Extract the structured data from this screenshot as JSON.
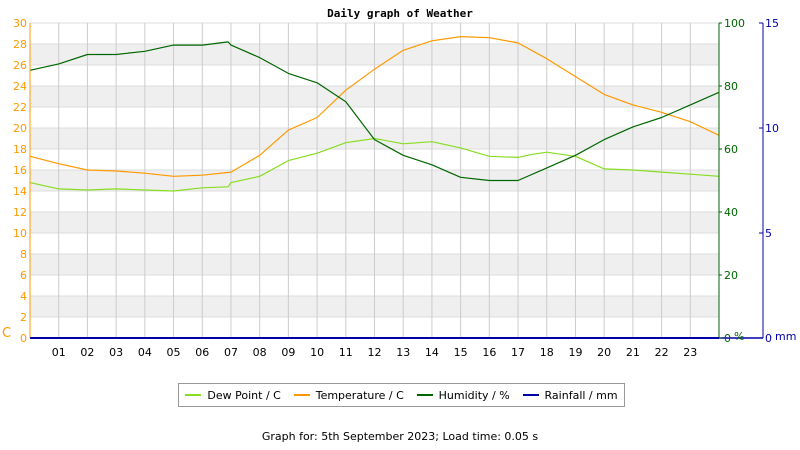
{
  "chart_data": {
    "type": "line",
    "title": "Daily graph of Weather",
    "x_tick_labels": [
      "01",
      "02",
      "03",
      "04",
      "05",
      "06",
      "07",
      "08",
      "09",
      "10",
      "11",
      "12",
      "13",
      "14",
      "15",
      "16",
      "17",
      "18",
      "19",
      "20",
      "21",
      "22",
      "23"
    ],
    "xlim": [
      0,
      24
    ],
    "grid": true,
    "legend_placement": "bottom-center",
    "axes": {
      "left": {
        "unit_label": "C",
        "range": [
          0,
          30
        ],
        "ticks": [
          0,
          2,
          4,
          6,
          8,
          10,
          12,
          14,
          16,
          18,
          20,
          22,
          24,
          26,
          28,
          30
        ],
        "color": "#ff9900"
      },
      "right1": {
        "unit_label": "%",
        "range": [
          0,
          100
        ],
        "ticks": [
          0,
          20,
          40,
          60,
          80,
          100
        ],
        "color": "#006600"
      },
      "right2": {
        "unit_label": "mm",
        "range": [
          0,
          15
        ],
        "ticks": [
          0,
          5,
          10,
          15
        ],
        "color": "#0000aa"
      }
    },
    "series": [
      {
        "name": "Dew Point / C",
        "axis": "left",
        "color": "#88dd22",
        "x": [
          0,
          1,
          2,
          3,
          4,
          5,
          6,
          6.9,
          7,
          8,
          9,
          10,
          11,
          12,
          13,
          14,
          15,
          16,
          17,
          17.5,
          18,
          19,
          20,
          21,
          22,
          23,
          24
        ],
        "values": [
          14.8,
          14.2,
          14.1,
          14.2,
          14.1,
          14.0,
          14.3,
          14.4,
          14.8,
          15.4,
          16.9,
          17.6,
          18.6,
          19.0,
          18.5,
          18.7,
          18.1,
          17.3,
          17.2,
          17.5,
          17.7,
          17.3,
          16.1,
          16.0,
          15.8,
          15.6,
          15.4
        ]
      },
      {
        "name": "Temperature / C",
        "axis": "left",
        "color": "#ff9900",
        "x": [
          0,
          1,
          2,
          3,
          4,
          5,
          6,
          7,
          8,
          9,
          10,
          11,
          12,
          13,
          14,
          15,
          16,
          17,
          18,
          19,
          20,
          21,
          22,
          23,
          24
        ],
        "values": [
          17.3,
          16.6,
          16.0,
          15.9,
          15.7,
          15.4,
          15.5,
          15.8,
          17.4,
          19.8,
          21.0,
          23.6,
          25.6,
          27.4,
          28.3,
          28.7,
          28.6,
          28.1,
          26.6,
          24.9,
          23.2,
          22.2,
          21.5,
          20.6,
          19.3
        ]
      },
      {
        "name": "Humidity / %",
        "axis": "right1",
        "color": "#006600",
        "x": [
          0,
          1,
          2,
          3,
          4,
          5,
          6,
          6.9,
          7,
          8,
          9,
          10,
          11,
          12,
          13,
          14,
          15,
          16,
          17,
          18,
          19,
          20,
          21,
          22,
          23,
          24
        ],
        "values": [
          85,
          87,
          90,
          90,
          91,
          93,
          93,
          94,
          93,
          89,
          84,
          81,
          75,
          63,
          58,
          55,
          51,
          50,
          50,
          54,
          58,
          63,
          67,
          70,
          74,
          78
        ]
      },
      {
        "name": "Rainfall / mm",
        "axis": "right2",
        "color": "#0000aa",
        "x": [
          0,
          24
        ],
        "values": [
          0,
          0
        ]
      }
    ]
  },
  "footer": "Graph for: 5th September 2023; Load time: 0.05 s"
}
